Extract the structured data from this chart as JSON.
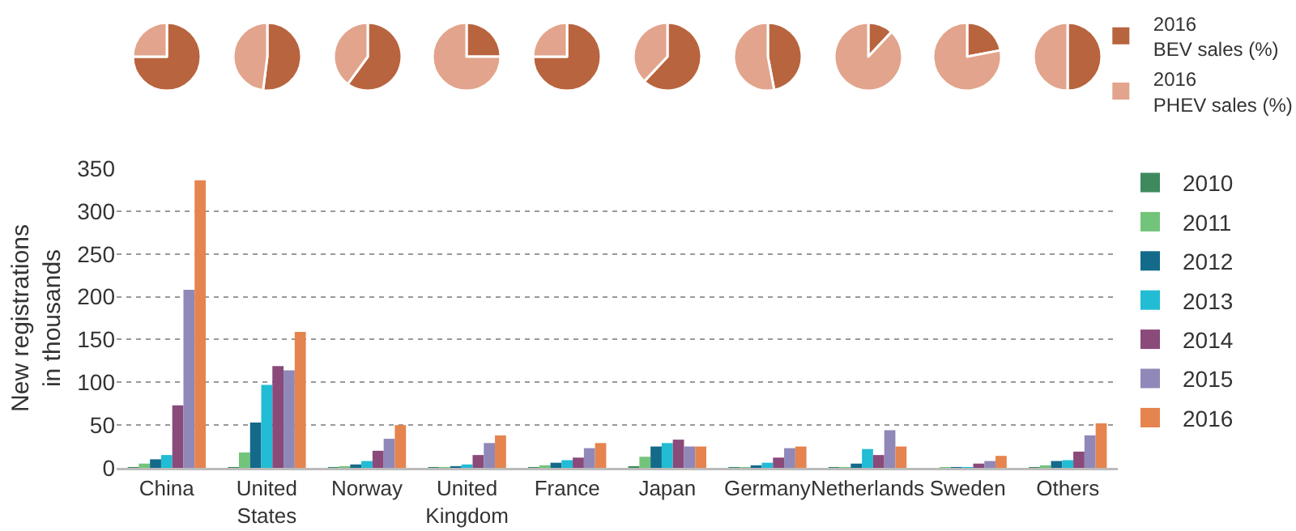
{
  "chart_data": [
    {
      "type": "pie",
      "categories": [
        null,
        null
      ],
      "values": [
        75,
        25
      ],
      "colors": [
        "#b8643e",
        "#e2a48c"
      ]
    },
    {
      "type": "pie",
      "categories": [
        null,
        null
      ],
      "values": [
        52,
        48
      ],
      "colors": [
        "#b8643e",
        "#e2a48c"
      ]
    },
    {
      "type": "pie",
      "categories": [
        null,
        null
      ],
      "values": [
        60,
        40
      ],
      "colors": [
        "#b8643e",
        "#e2a48c"
      ]
    },
    {
      "type": "pie",
      "categories": [
        null,
        null
      ],
      "values": [
        25,
        75
      ],
      "colors": [
        "#b8643e",
        "#e2a48c"
      ]
    },
    {
      "type": "pie",
      "categories": [
        null,
        null
      ],
      "values": [
        75,
        25
      ],
      "colors": [
        "#b8643e",
        "#e2a48c"
      ]
    },
    {
      "type": "pie",
      "categories": [
        null,
        null
      ],
      "values": [
        62,
        38
      ],
      "colors": [
        "#b8643e",
        "#e2a48c"
      ]
    },
    {
      "type": "pie",
      "categories": [
        null,
        null
      ],
      "values": [
        47,
        53
      ],
      "colors": [
        "#b8643e",
        "#e2a48c"
      ]
    },
    {
      "type": "pie",
      "categories": [
        null,
        null
      ],
      "values": [
        12,
        88
      ],
      "colors": [
        "#b8643e",
        "#e2a48c"
      ]
    },
    {
      "type": "pie",
      "categories": [
        null,
        null
      ],
      "values": [
        22,
        78
      ],
      "colors": [
        "#b8643e",
        "#e2a48c"
      ]
    },
    {
      "type": "pie",
      "categories": [
        "2016 BEV sales (%)",
        "2016 PHEV sales (%)"
      ],
      "values": [
        50,
        50
      ],
      "colors": [
        "#b8643e",
        "#e2a48c"
      ],
      "legend": "right"
    },
    {
      "type": "bar",
      "ylabel": "New registrations in thousands",
      "categories": [
        "China",
        "United States",
        "Norway",
        "United Kingdom",
        "France",
        "Japan",
        "Germany",
        "Netherlands",
        "Sweden",
        "Others"
      ],
      "series": [
        {
          "name": "2010",
          "color": "#3e8a5e",
          "values": [
            1,
            1,
            1,
            1,
            1,
            2,
            1,
            1,
            0,
            1
          ]
        },
        {
          "name": "2011",
          "color": "#72c47a",
          "values": [
            5,
            18,
            2,
            1,
            3,
            13,
            1,
            1,
            1,
            3
          ]
        },
        {
          "name": "2012",
          "color": "#136a8a",
          "values": [
            10,
            53,
            4,
            2,
            6,
            25,
            3,
            5,
            1,
            8
          ]
        },
        {
          "name": "2013",
          "color": "#22bcd4",
          "values": [
            15,
            97,
            8,
            4,
            9,
            29,
            6,
            22,
            1,
            9
          ]
        },
        {
          "name": "2014",
          "color": "#8a4a7a",
          "values": [
            73,
            119,
            20,
            15,
            12,
            33,
            12,
            15,
            5,
            19
          ]
        },
        {
          "name": "2015",
          "color": "#9088b8",
          "values": [
            208,
            114,
            34,
            29,
            23,
            25,
            23,
            44,
            8,
            38
          ]
        },
        {
          "name": "2016",
          "color": "#e5844f",
          "values": [
            336,
            159,
            50,
            38,
            29,
            25,
            25,
            25,
            14,
            52
          ]
        }
      ],
      "ylim": [
        0,
        350
      ],
      "yticks": [
        0,
        50,
        100,
        150,
        200,
        250,
        300,
        350
      ],
      "grid": "y",
      "legend": "right"
    }
  ]
}
